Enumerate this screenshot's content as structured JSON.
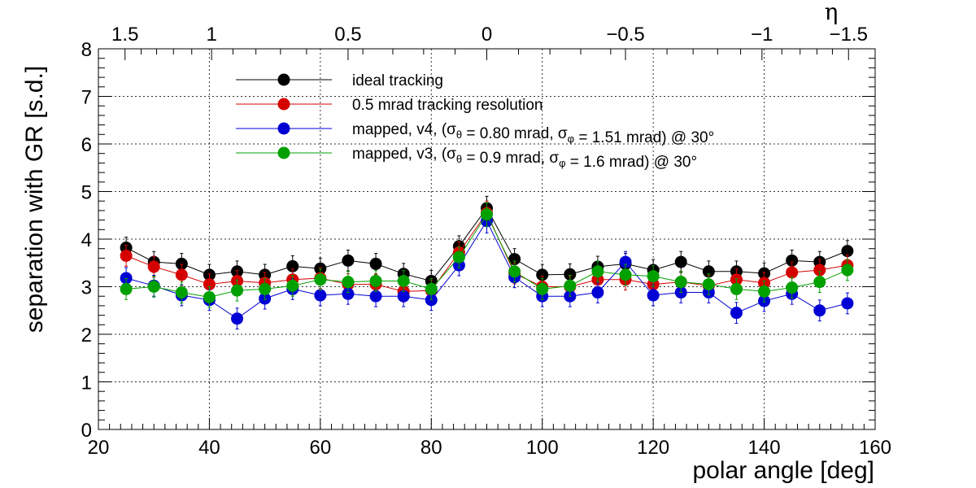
{
  "chart_data": {
    "type": "scatter",
    "xlabel": "polar angle [deg]",
    "ylabel": "separation with GR [s.d.]",
    "top_axis_label": "η",
    "xlim": [
      20,
      160
    ],
    "ylim": [
      0,
      8
    ],
    "grid": true,
    "legend_position": "top-center",
    "x_ticks": [
      "20",
      "40",
      "60",
      "80",
      "100",
      "120",
      "140",
      "160"
    ],
    "y_ticks": [
      "0",
      "1",
      "2",
      "3",
      "4",
      "5",
      "6",
      "7",
      "8"
    ],
    "top_ticks": [
      {
        "label": "1.5",
        "x": 24.8
      },
      {
        "label": "1",
        "x": 40.4
      },
      {
        "label": "0.5",
        "x": 65.0
      },
      {
        "label": "0",
        "x": 90.0
      },
      {
        "label": "−0.5",
        "x": 115.0
      },
      {
        "label": "−1",
        "x": 139.6
      },
      {
        "label": "−1.5",
        "x": 155.2
      }
    ],
    "x": [
      25,
      30,
      35,
      40,
      45,
      50,
      55,
      60,
      65,
      70,
      75,
      80,
      85,
      90,
      95,
      100,
      105,
      110,
      115,
      120,
      125,
      130,
      135,
      140,
      145,
      150,
      155
    ],
    "series": [
      {
        "name": "ideal tracking",
        "color": "#000000",
        "values": [
          3.82,
          3.52,
          3.48,
          3.25,
          3.32,
          3.25,
          3.43,
          3.38,
          3.55,
          3.48,
          3.27,
          3.12,
          3.85,
          4.65,
          3.58,
          3.25,
          3.26,
          3.42,
          3.48,
          3.35,
          3.52,
          3.32,
          3.32,
          3.28,
          3.55,
          3.52,
          3.75
        ],
        "errors": [
          0.22,
          0.22,
          0.22,
          0.22,
          0.22,
          0.22,
          0.22,
          0.22,
          0.22,
          0.22,
          0.22,
          0.22,
          0.22,
          0.25,
          0.22,
          0.22,
          0.22,
          0.22,
          0.22,
          0.22,
          0.22,
          0.22,
          0.22,
          0.22,
          0.22,
          0.22,
          0.22
        ]
      },
      {
        "name": "0.5 mrad tracking resolution",
        "color": "#d40000",
        "values": [
          3.65,
          3.42,
          3.25,
          3.05,
          3.12,
          3.08,
          3.15,
          3.18,
          3.05,
          3.05,
          2.9,
          2.92,
          3.72,
          4.55,
          3.28,
          3.0,
          3.0,
          3.15,
          3.15,
          3.05,
          3.1,
          3.02,
          3.15,
          3.08,
          3.3,
          3.35,
          3.45
        ],
        "errors": [
          0.22,
          0.22,
          0.22,
          0.22,
          0.22,
          0.22,
          0.22,
          0.22,
          0.22,
          0.22,
          0.22,
          0.22,
          0.22,
          0.25,
          0.22,
          0.22,
          0.22,
          0.22,
          0.22,
          0.22,
          0.22,
          0.22,
          0.22,
          0.22,
          0.22,
          0.22,
          0.22
        ]
      },
      {
        "name": "mapped, v4, (σθ = 0.80 mrad, σφ = 1.51 mrad) @ 30°",
        "color": "#0000d4",
        "values": [
          3.18,
          3.02,
          2.82,
          2.72,
          2.33,
          2.75,
          2.95,
          2.82,
          2.85,
          2.8,
          2.8,
          2.72,
          3.45,
          4.38,
          3.2,
          2.8,
          2.8,
          2.88,
          3.52,
          2.82,
          2.88,
          2.88,
          2.45,
          2.7,
          2.85,
          2.5,
          2.65
        ],
        "errors": [
          0.22,
          0.22,
          0.22,
          0.22,
          0.22,
          0.22,
          0.22,
          0.22,
          0.22,
          0.22,
          0.22,
          0.22,
          0.22,
          0.25,
          0.22,
          0.22,
          0.22,
          0.22,
          0.22,
          0.22,
          0.22,
          0.22,
          0.22,
          0.22,
          0.22,
          0.22,
          0.22
        ]
      },
      {
        "name": "mapped, v3, (σθ = 0.9 mrad, σφ = 1.6 mrad) @ 30°",
        "color": "#00a000",
        "values": [
          2.95,
          3.0,
          2.88,
          2.78,
          2.92,
          2.95,
          3.02,
          3.15,
          3.1,
          3.12,
          3.12,
          2.95,
          3.62,
          4.52,
          3.32,
          2.95,
          3.02,
          3.32,
          3.25,
          3.22,
          3.1,
          3.05,
          2.95,
          2.9,
          2.98,
          3.1,
          3.35
        ],
        "errors": [
          0.22,
          0.22,
          0.22,
          0.22,
          0.22,
          0.22,
          0.22,
          0.22,
          0.22,
          0.22,
          0.22,
          0.22,
          0.22,
          0.25,
          0.22,
          0.22,
          0.22,
          0.22,
          0.22,
          0.22,
          0.22,
          0.22,
          0.22,
          0.22,
          0.22,
          0.22,
          0.22
        ]
      }
    ]
  }
}
